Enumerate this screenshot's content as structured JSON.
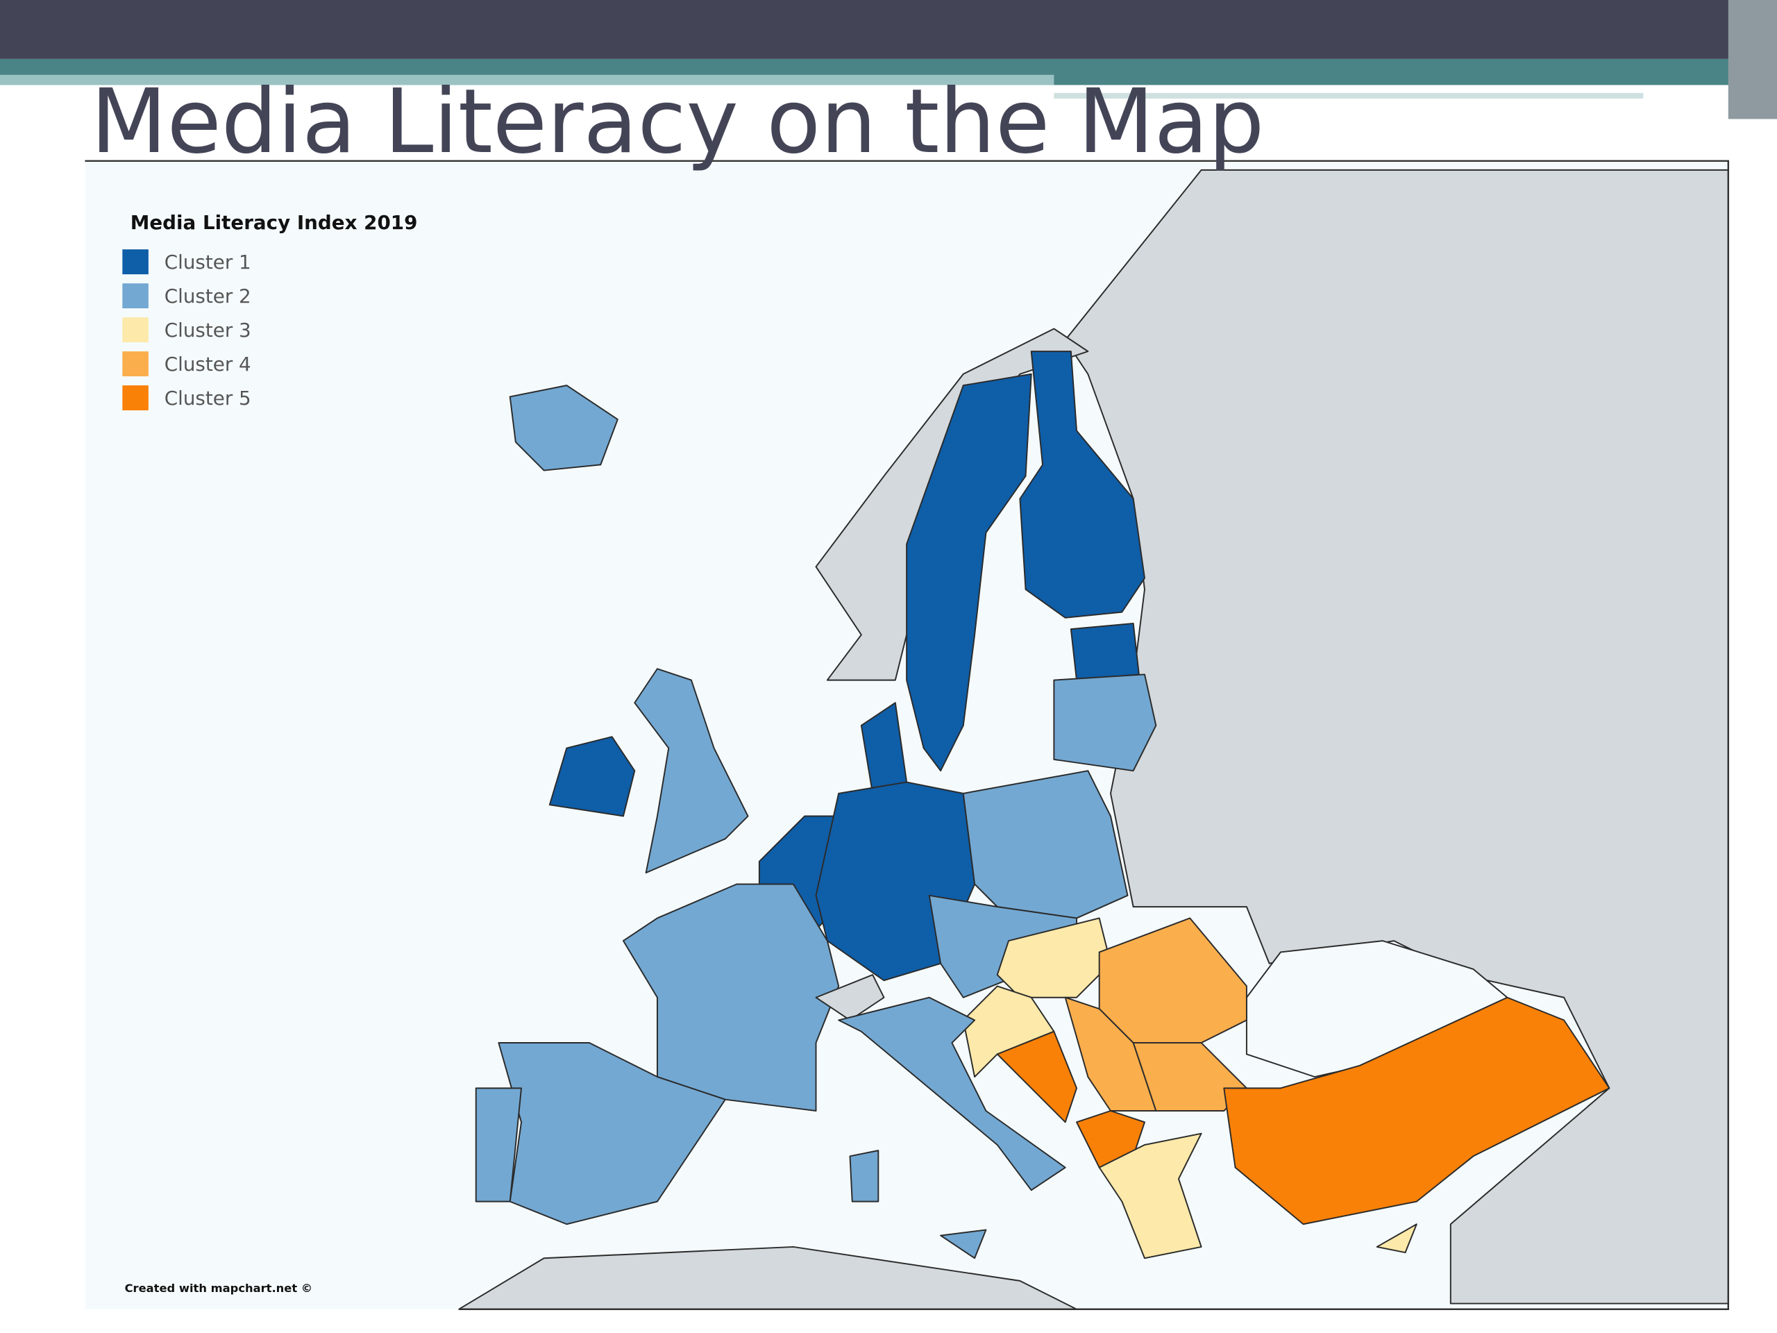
{
  "header": {
    "title": "Media Literacy on the Map"
  },
  "legend": {
    "title": "Media Literacy Index 2019",
    "items": [
      {
        "label": "Cluster 1",
        "color": "#0f5ea8"
      },
      {
        "label": "Cluster 2",
        "color": "#73a8d2"
      },
      {
        "label": "Cluster 3",
        "color": "#fde9a9"
      },
      {
        "label": "Cluster 4",
        "color": "#fbae4c"
      },
      {
        "label": "Cluster 5",
        "color": "#f98107"
      }
    ]
  },
  "credit": "Created with mapchart.net ©"
}
